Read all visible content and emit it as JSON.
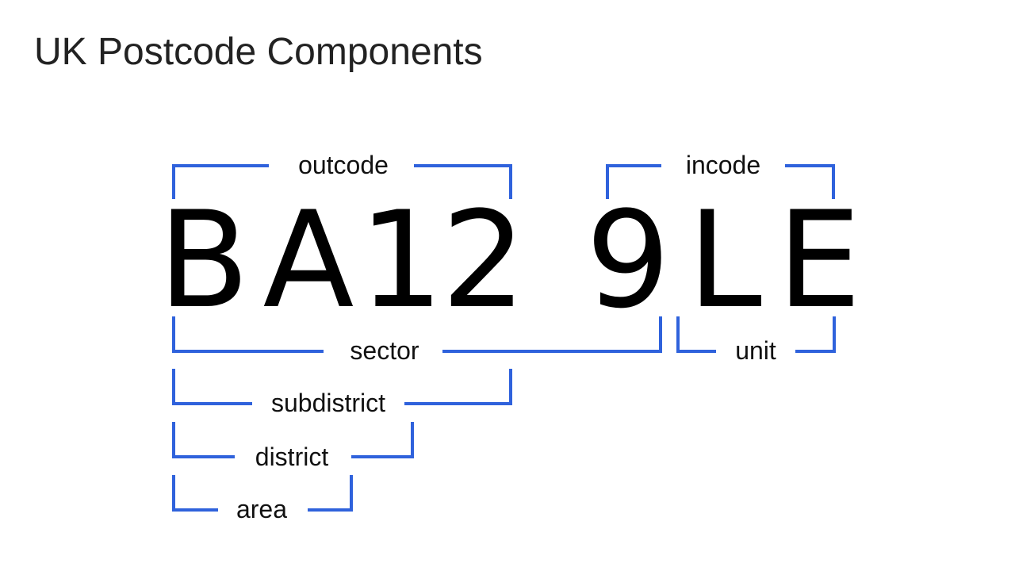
{
  "title": "UK Postcode Components",
  "accent_color": "#2f62dc",
  "postcode": {
    "characters": [
      "B",
      "A",
      "1",
      "2",
      "9",
      "L",
      "E"
    ]
  },
  "labels": {
    "outcode": "outcode",
    "incode": "incode",
    "sector": "sector",
    "unit": "unit",
    "subdistrict": "subdistrict",
    "district": "district",
    "area": "area"
  }
}
